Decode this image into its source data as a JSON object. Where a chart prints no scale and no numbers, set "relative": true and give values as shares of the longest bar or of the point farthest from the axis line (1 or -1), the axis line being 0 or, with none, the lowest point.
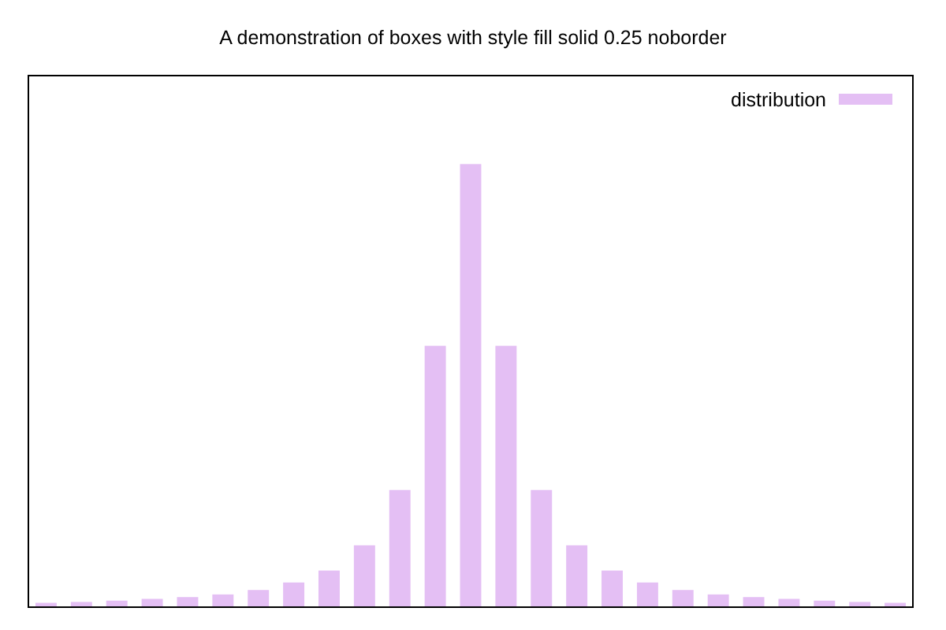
{
  "chart_data": {
    "type": "bar",
    "title": "A demonstration of boxes with style fill solid 0.25 noborder",
    "categories": [
      null,
      null,
      null,
      null,
      null,
      null,
      null,
      null,
      null,
      null,
      null,
      null,
      null,
      null,
      null,
      null,
      null,
      null,
      null,
      null,
      null,
      null,
      null,
      null,
      null
    ],
    "series": [
      {
        "name": "distribution",
        "color": "#e4bff4",
        "values": [
          0.008,
          0.01,
          0.013,
          0.017,
          0.021,
          0.027,
          0.037,
          0.054,
          0.081,
          0.138,
          0.263,
          0.589,
          1,
          0.589,
          0.263,
          0.138,
          0.081,
          0.054,
          0.037,
          0.027,
          0.021,
          0.017,
          0.013,
          0.01,
          0.008
        ]
      }
    ],
    "relative": true,
    "legend": "top right"
  }
}
